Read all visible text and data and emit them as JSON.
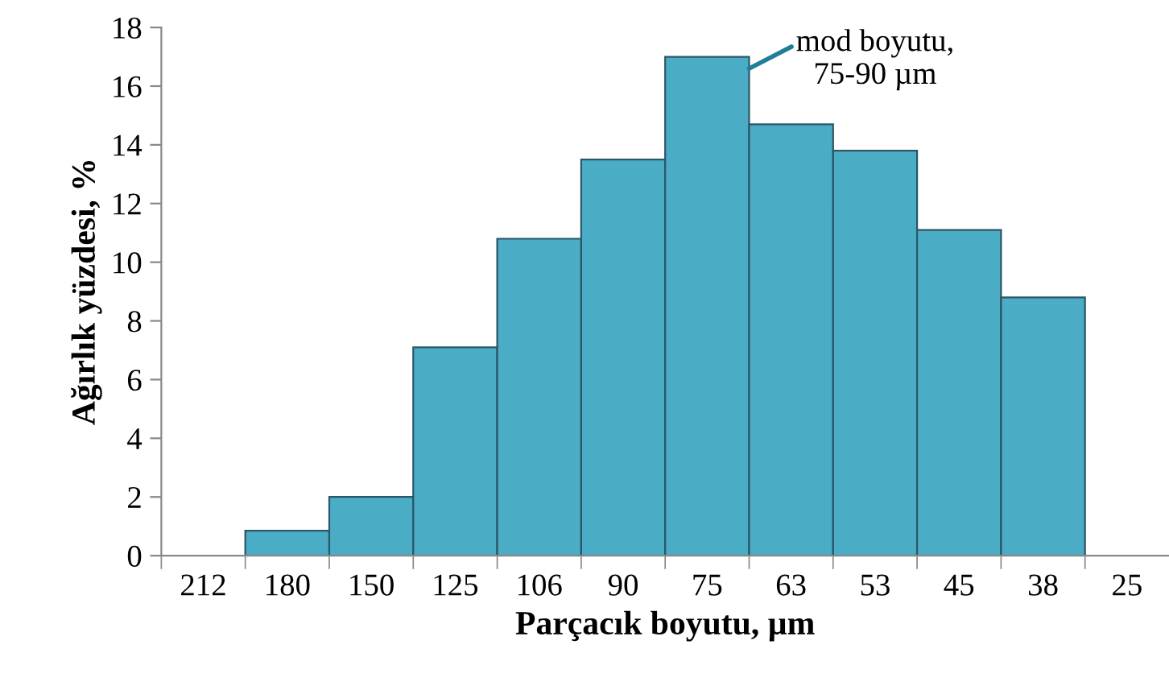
{
  "chart_data": {
    "type": "bar",
    "xlabel": "Parçacık boyutu, µm",
    "ylabel": "Ağırlık yüzdesi, %",
    "categories": [
      "212",
      "180",
      "150",
      "125",
      "106",
      "90",
      "75",
      "63",
      "53",
      "45",
      "38",
      "25"
    ],
    "values": [
      null,
      0.85,
      2.0,
      7.1,
      10.8,
      13.5,
      17.0,
      14.7,
      13.8,
      11.1,
      8.8,
      null
    ],
    "color": "#4bacc6",
    "ylim": [
      0,
      18
    ],
    "yticks": [
      0,
      2,
      4,
      6,
      8,
      10,
      12,
      14,
      16,
      18
    ],
    "grid": false,
    "annotations": [
      {
        "text": "mod boyutu,\n75-90 µm",
        "x": "75",
        "y": 17
      }
    ]
  }
}
